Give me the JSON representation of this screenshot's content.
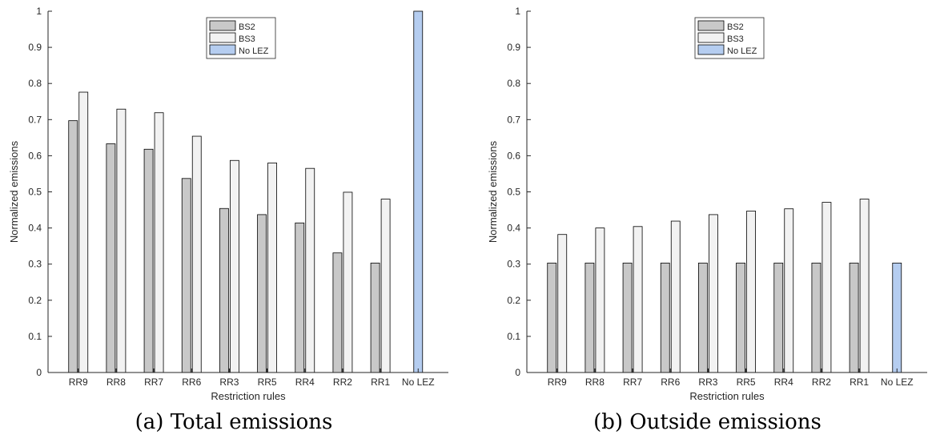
{
  "colors": {
    "BS2": "#c8c8c8",
    "BS3": "#f2f2f2",
    "No LEZ": "#b5cdf0",
    "axis": "#262626"
  },
  "chart_data": [
    {
      "type": "bar",
      "caption": "(a) Total emissions",
      "xlabel": "Restriction rules",
      "ylabel": "Normalized emissions",
      "ylim": [
        0,
        1
      ],
      "yticks": [
        "0",
        "0.1",
        "0.2",
        "0.3",
        "0.4",
        "0.5",
        "0.6",
        "0.7",
        "0.8",
        "0.9",
        "1"
      ],
      "categories": [
        "RR9",
        "RR8",
        "RR7",
        "RR6",
        "RR3",
        "RR5",
        "RR4",
        "RR2",
        "RR1",
        "No LEZ"
      ],
      "series": [
        {
          "name": "BS2",
          "values": [
            0.697,
            0.633,
            0.618,
            0.537,
            0.454,
            0.437,
            0.414,
            0.331,
            0.303,
            null
          ]
        },
        {
          "name": "BS3",
          "values": [
            0.776,
            0.729,
            0.719,
            0.654,
            0.587,
            0.58,
            0.565,
            0.499,
            0.48,
            null
          ]
        },
        {
          "name": "No LEZ",
          "values": [
            null,
            null,
            null,
            null,
            null,
            null,
            null,
            null,
            null,
            1.0
          ]
        }
      ],
      "legend": "top-right",
      "grid": false
    },
    {
      "type": "bar",
      "caption": "(b) Outside emissions",
      "xlabel": "Restriction rules",
      "ylabel": "Normalized emissions",
      "ylim": [
        0,
        1
      ],
      "yticks": [
        "0",
        "0.1",
        "0.2",
        "0.3",
        "0.4",
        "0.5",
        "0.6",
        "0.7",
        "0.8",
        "0.9",
        "1"
      ],
      "categories": [
        "RR9",
        "RR8",
        "RR7",
        "RR6",
        "RR3",
        "RR5",
        "RR4",
        "RR2",
        "RR1",
        "No LEZ"
      ],
      "series": [
        {
          "name": "BS2",
          "values": [
            0.303,
            0.303,
            0.303,
            0.303,
            0.303,
            0.303,
            0.303,
            0.303,
            0.303,
            null
          ]
        },
        {
          "name": "BS3",
          "values": [
            0.382,
            0.4,
            0.404,
            0.419,
            0.437,
            0.447,
            0.453,
            0.471,
            0.48,
            null
          ]
        },
        {
          "name": "No LEZ",
          "values": [
            null,
            null,
            null,
            null,
            null,
            null,
            null,
            null,
            null,
            0.303
          ]
        }
      ],
      "legend": "top-right",
      "grid": false
    }
  ]
}
